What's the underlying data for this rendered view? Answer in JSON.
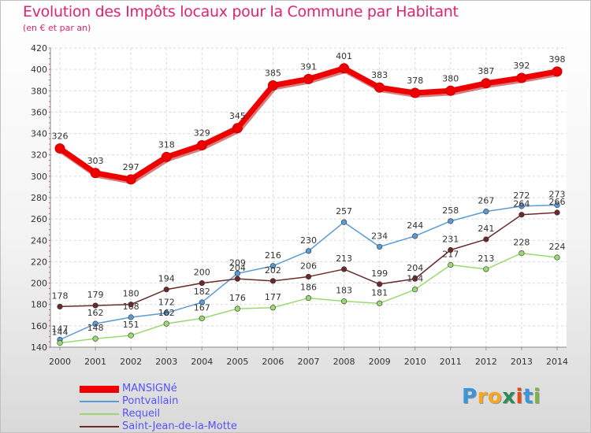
{
  "title": "Evolution des Impôts locaux pour la Commune par Habitant",
  "subtitle": "(en € et par an)",
  "logo": {
    "letters": [
      "P",
      "r",
      "o",
      "x",
      "i",
      "t",
      "i"
    ],
    "colors": [
      "#3b95d8",
      "#f5a623",
      "#f5a623",
      "#2e8b57",
      "#e64a19",
      "#3b95d8",
      "#7cb342"
    ]
  },
  "chart_data": {
    "type": "line",
    "title": "Evolution des Impôts locaux pour la Commune par Habitant",
    "ylabel": "(en € et par an)",
    "xlabel": "",
    "ylim": [
      140,
      420
    ],
    "yticks": [
      140,
      160,
      180,
      200,
      220,
      240,
      260,
      280,
      300,
      320,
      340,
      360,
      380,
      400,
      420
    ],
    "categories": [
      "2000",
      "2001",
      "2002",
      "2003",
      "2004",
      "2005",
      "2006",
      "2007",
      "2008",
      "2009",
      "2010",
      "2011",
      "2012",
      "2013",
      "2014"
    ],
    "grid": true,
    "legend_position": "bottom-left",
    "series": [
      {
        "name": "MANSIGNé",
        "color": "#ee0000",
        "values": [
          326,
          303,
          297,
          318,
          329,
          345,
          385,
          391,
          401,
          383,
          378,
          380,
          387,
          392,
          398
        ]
      },
      {
        "name": "Pontvallain",
        "color": "#5b9bd5",
        "values": [
          147,
          162,
          168,
          172,
          182,
          209,
          216,
          230,
          257,
          234,
          244,
          258,
          267,
          272,
          273
        ]
      },
      {
        "name": "Requeil",
        "color": "#99d96f",
        "values": [
          144,
          148,
          151,
          162,
          167,
          176,
          177,
          186,
          183,
          181,
          194,
          217,
          213,
          228,
          224
        ]
      },
      {
        "name": "Saint-Jean-de-la-Motte",
        "color": "#6b2a2a",
        "values": [
          178,
          179,
          180,
          194,
          200,
          204,
          202,
          206,
          213,
          199,
          204,
          231,
          241,
          264,
          266
        ]
      }
    ]
  }
}
